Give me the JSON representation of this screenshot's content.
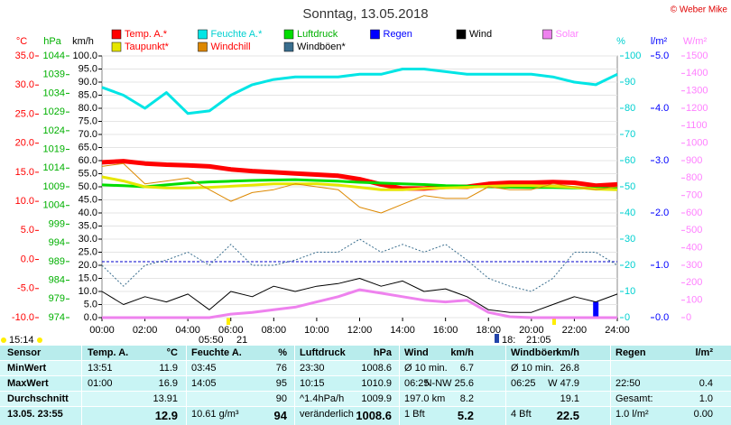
{
  "chart_data": {
    "type": "line",
    "title": "Sonntag, 13.05.2018",
    "credit": "© Weber Mike",
    "grid": true,
    "x": [
      0,
      1,
      2,
      3,
      4,
      5,
      6,
      7,
      8,
      9,
      10,
      11,
      12,
      13,
      14,
      15,
      16,
      17,
      18,
      19,
      20,
      21,
      22,
      23,
      24
    ],
    "xlim": [
      0,
      24
    ],
    "xticks": [
      {
        "value": 0,
        "label": "00:00"
      },
      {
        "value": 2,
        "label": "02:00"
      },
      {
        "value": 4,
        "label": "04:00"
      },
      {
        "value": 6,
        "label": "06:00"
      },
      {
        "value": 8,
        "label": "08:00"
      },
      {
        "value": 10,
        "label": "10:00"
      },
      {
        "value": 12,
        "label": "12:00"
      },
      {
        "value": 14,
        "label": "14:00"
      },
      {
        "value": 16,
        "label": "16:00"
      },
      {
        "value": 18,
        "label": "18:00"
      },
      {
        "value": 20,
        "label": "20:00"
      },
      {
        "value": 22,
        "label": "22:00"
      },
      {
        "value": 24,
        "label": "24:00"
      }
    ],
    "axes": [
      {
        "label": "°C",
        "color": "#ff0000",
        "lim": [
          -10,
          35
        ],
        "ticks": [
          {
            "value": -10,
            "label": "-10.0"
          },
          {
            "value": -5,
            "label": "-5.0"
          },
          {
            "value": 0,
            "label": "0.0"
          },
          {
            "value": 5,
            "label": "5.0"
          },
          {
            "value": 10,
            "label": "10.0"
          },
          {
            "value": 15,
            "label": "15.0"
          },
          {
            "value": 20,
            "label": "20.0"
          },
          {
            "value": 25,
            "label": "25.0"
          },
          {
            "value": 30,
            "label": "30.0"
          },
          {
            "value": 35,
            "label": "35.0"
          }
        ]
      },
      {
        "label": "hPa",
        "color": "#00b000",
        "lim": [
          974,
          1044
        ],
        "ticks": [
          974,
          979,
          984,
          989,
          994,
          999,
          1004,
          1009,
          1014,
          1019,
          1024,
          1029,
          1034,
          1039,
          1044
        ]
      },
      {
        "label": "km/h",
        "color": "#000000",
        "lim": [
          0,
          100
        ],
        "ticks": [
          {
            "value": 0,
            "label": "0.0"
          },
          {
            "value": 5,
            "label": "5.0"
          },
          {
            "value": 10,
            "label": "10.0"
          },
          {
            "value": 15,
            "label": "15.0"
          },
          {
            "value": 20,
            "label": "20.0"
          },
          {
            "value": 25,
            "label": "25.0"
          },
          {
            "value": 30,
            "label": "30.0"
          },
          {
            "value": 35,
            "label": "35.0"
          },
          {
            "value": 40,
            "label": "40.0"
          },
          {
            "value": 45,
            "label": "45.0"
          },
          {
            "value": 50,
            "label": "50.0"
          },
          {
            "value": 55,
            "label": "55.0"
          },
          {
            "value": 60,
            "label": "60.0"
          },
          {
            "value": 65,
            "label": "65.0"
          },
          {
            "value": 70,
            "label": "70.0"
          },
          {
            "value": 75,
            "label": "75.0"
          },
          {
            "value": 80,
            "label": "80.0"
          },
          {
            "value": 85,
            "label": "85.0"
          },
          {
            "value": 90,
            "label": "90.0"
          },
          {
            "value": 95,
            "label": "95.0"
          },
          {
            "value": 100,
            "label": "100.0"
          }
        ]
      },
      {
        "label": "%",
        "color": "#00d0d0",
        "lim": [
          0,
          100
        ],
        "ticks": [
          0,
          10,
          20,
          30,
          40,
          50,
          60,
          70,
          80,
          90,
          100
        ]
      },
      {
        "label": "l/m²",
        "color": "#0000ff",
        "lim": [
          0,
          5
        ],
        "ticks": [
          {
            "value": 0,
            "label": "0.0"
          },
          {
            "value": 1,
            "label": "1.0"
          },
          {
            "value": 2,
            "label": "2.0"
          },
          {
            "value": 3,
            "label": "3.0"
          },
          {
            "value": 4,
            "label": "4.0"
          },
          {
            "value": 5,
            "label": "5.0"
          }
        ]
      },
      {
        "label": "W/m²",
        "color": "#ff80ff",
        "lim": [
          0,
          1500
        ],
        "ticks": [
          0,
          100,
          200,
          300,
          400,
          500,
          600,
          700,
          800,
          900,
          1000,
          1100,
          1200,
          1300,
          1400,
          1500
        ]
      }
    ],
    "series": [
      {
        "name": "Temp. A.*",
        "axis": "°C",
        "color": "#ff0000",
        "text_color": "#ff0000",
        "width": 5,
        "values": [
          16.7,
          16.9,
          16.5,
          16.3,
          16.2,
          16.0,
          15.5,
          15.2,
          15.0,
          14.8,
          14.6,
          14.4,
          13.8,
          12.9,
          12.2,
          12.2,
          12.5,
          12.5,
          13.0,
          13.2,
          13.2,
          13.3,
          13.2,
          12.7,
          12.9
        ]
      },
      {
        "name": "Feuchte A.*",
        "axis": "%",
        "color": "#00e5e5",
        "text_color": "#00d0d0",
        "width": 3,
        "values": [
          88,
          85,
          80,
          86,
          78,
          79,
          85,
          89,
          91,
          92,
          92,
          92,
          93,
          93,
          95,
          95,
          94,
          93,
          93,
          93,
          93,
          92,
          90,
          89,
          93
        ]
      },
      {
        "name": "Luftdruck",
        "axis": "hPa",
        "color": "#00dd00",
        "text_color": "#00b000",
        "width": 3,
        "values": [
          1009.5,
          1009.3,
          1009.0,
          1009.5,
          1010.0,
          1010.3,
          1010.5,
          1010.7,
          1010.8,
          1010.9,
          1010.7,
          1010.5,
          1010.2,
          1010.0,
          1009.8,
          1009.6,
          1009.3,
          1009.2,
          1009.0,
          1008.9,
          1008.8,
          1008.8,
          1008.7,
          1008.6,
          1008.6
        ]
      },
      {
        "name": "Regen",
        "axis": "l/m²",
        "color": "#0000ff",
        "text_color": "#0000ff",
        "style": "bar",
        "values": [
          0,
          0,
          0,
          0,
          0,
          0,
          0,
          0,
          0,
          0,
          0,
          0,
          0,
          0,
          0,
          0,
          0,
          0,
          0,
          0,
          0,
          0,
          0,
          0.3,
          0
        ]
      },
      {
        "name": "Wind",
        "axis": "km/h",
        "color": "#000000",
        "text_color": "#000000",
        "width": 1,
        "values": [
          10,
          5,
          8,
          6,
          9,
          3,
          10,
          8,
          12,
          10,
          12,
          13,
          15,
          12,
          14,
          10,
          11,
          8,
          3,
          2,
          2,
          5,
          8,
          6,
          9
        ]
      },
      {
        "name": "Solar",
        "axis": "W/m²",
        "color": "#ee82ee",
        "text_color": "#ff80ff",
        "width": 3,
        "values": [
          0,
          0,
          0,
          0,
          0,
          0,
          20,
          30,
          45,
          60,
          90,
          120,
          160,
          140,
          120,
          100,
          90,
          100,
          30,
          5,
          0,
          0,
          0,
          0,
          0
        ]
      },
      {
        "name": "Taupunkt*",
        "axis": "°C",
        "color": "#e6e600",
        "text_color": "#ff0000",
        "width": 3,
        "values": [
          14.2,
          13.5,
          12.5,
          12.3,
          12.3,
          12.4,
          12.6,
          12.8,
          13.0,
          13.0,
          13.0,
          12.8,
          12.4,
          12.0,
          12.0,
          12.2,
          12.3,
          12.4,
          12.6,
          12.7,
          12.7,
          12.6,
          12.4,
          12.1,
          12.0
        ]
      },
      {
        "name": "Windchill",
        "axis": "°C",
        "color": "#dd8800",
        "text_color": "#ff0000",
        "width": 1,
        "values": [
          16.0,
          16.5,
          13.0,
          13.5,
          14.0,
          12.0,
          10.0,
          11.5,
          12.0,
          13.0,
          12.5,
          12.0,
          9.0,
          8.0,
          9.5,
          11.0,
          10.5,
          10.5,
          12.5,
          12.0,
          12.0,
          13.0,
          12.5,
          12.0,
          12.5
        ]
      },
      {
        "name": "Windböen*",
        "axis": "km/h",
        "color": "#3a6e8e",
        "text_color": "#000000",
        "width": 1,
        "dash": true,
        "values": [
          20,
          12,
          20,
          22,
          25,
          20,
          28,
          20,
          20,
          22,
          25,
          25,
          30,
          25,
          28,
          25,
          28,
          22,
          15,
          12,
          10,
          15,
          25,
          25,
          20
        ]
      }
    ],
    "annotations": [
      "15:14",
      "05:50",
      "21",
      "18:",
      "21:05"
    ]
  },
  "table": {
    "header": [
      "Sensor",
      "Temp. A.",
      "°C",
      "Feuchte A.",
      "%",
      "Luftdruck",
      "hPa",
      "Wind",
      "km/h",
      "Windböen",
      "km/h",
      "Regen",
      "l/m²"
    ],
    "rows": [
      [
        "MinWert",
        "13:51",
        "11.9",
        "03:45",
        "76",
        "23:30",
        "1008.6",
        "Ø 10 min.",
        "6.7",
        "Ø 10 min.",
        "26.8",
        null,
        null
      ],
      [
        "MaxWert",
        "01:00",
        "16.9",
        "14:05",
        "95",
        "10:15",
        "1010.9",
        "06:25",
        "N-NW 25.6",
        "06:25",
        "W 47.9",
        "22:50",
        "0.4"
      ],
      [
        "Durchschnitt",
        null,
        "13.91",
        null,
        "90",
        "^1.4hPa/h",
        "1009.9",
        "197.0 km",
        "8.2",
        null,
        "19.1",
        "Gesamt:",
        "1.0"
      ],
      [
        "13.05. 23:55",
        null,
        "12.9",
        "10.61 g/m³",
        "94",
        "veränderlich",
        "1008.6",
        "1 Bft",
        "5.2",
        "4 Bft",
        "22.5",
        "1.0 l/m²",
        "0.00"
      ]
    ]
  }
}
